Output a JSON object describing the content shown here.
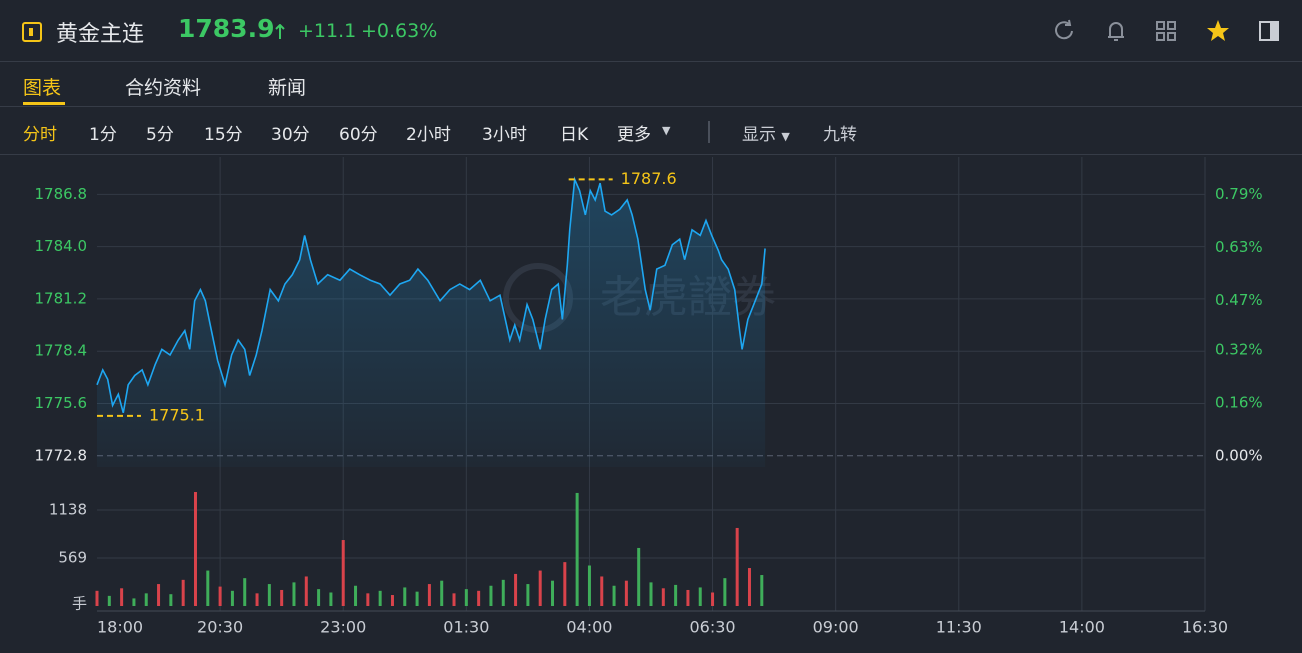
{
  "header": {
    "title": "黄金主连",
    "price": "1783.9",
    "change": "+11.1",
    "change_pct": "+0.63%"
  },
  "tabs": [
    "图表",
    "合约资料",
    "新闻"
  ],
  "active_tab": 0,
  "periods": [
    "分时",
    "1分",
    "5分",
    "15分",
    "30分",
    "60分",
    "2小时",
    "3小时",
    "日K",
    "更多"
  ],
  "active_period": 0,
  "display": "显示",
  "nine_turn": "九转",
  "chart_data": {
    "type": "line",
    "color": "#1ea7f2",
    "watermark": "老虎證券",
    "x": [
      0,
      7,
      13,
      19,
      26,
      32,
      38,
      46,
      55,
      62,
      71,
      79,
      89,
      99,
      107,
      113,
      119,
      126,
      132,
      138,
      147,
      156,
      164,
      172,
      180,
      186,
      194,
      201,
      211,
      221,
      229,
      238,
      247,
      253,
      260,
      269,
      281,
      296,
      308,
      320,
      333,
      345,
      357,
      369,
      381,
      391,
      403,
      418,
      430,
      442,
      454,
      467,
      479,
      491,
      503,
      509,
      515,
      524,
      531,
      540,
      546,
      554,
      562,
      567,
      573,
      576,
      582,
      588,
      595,
      601,
      607,
      613,
      619,
      627,
      637,
      646,
      652,
      659,
      668,
      674,
      682,
      692,
      701,
      710,
      716,
      725,
      735,
      742,
      749,
      757,
      761,
      769,
      777,
      783,
      786,
      793,
      802,
      810,
      814
    ],
    "values": [
      1776.6,
      1777.4,
      1776.9,
      1775.5,
      1776.1,
      1775.1,
      1776.6,
      1777.1,
      1777.4,
      1776.6,
      1777.7,
      1778.5,
      1778.2,
      1779.0,
      1779.5,
      1778.5,
      1781.1,
      1781.7,
      1781.1,
      1779.8,
      1777.9,
      1776.6,
      1778.2,
      1779.0,
      1778.5,
      1777.1,
      1778.2,
      1779.5,
      1781.7,
      1781.1,
      1782.0,
      1782.5,
      1783.3,
      1784.6,
      1783.3,
      1782.0,
      1782.5,
      1782.2,
      1782.8,
      1782.5,
      1782.2,
      1782.0,
      1781.4,
      1782.0,
      1782.2,
      1782.8,
      1782.2,
      1781.1,
      1781.7,
      1782.0,
      1781.7,
      1782.2,
      1781.1,
      1781.4,
      1779.0,
      1779.8,
      1779.0,
      1780.9,
      1780.1,
      1778.5,
      1780.1,
      1781.7,
      1782.0,
      1780.1,
      1783.0,
      1784.9,
      1787.6,
      1787.0,
      1785.7,
      1787.0,
      1786.5,
      1787.4,
      1785.9,
      1785.7,
      1786.0,
      1786.5,
      1785.7,
      1784.4,
      1781.7,
      1780.6,
      1782.8,
      1783.0,
      1784.1,
      1784.4,
      1783.3,
      1784.9,
      1784.6,
      1785.4,
      1784.6,
      1783.8,
      1783.3,
      1782.8,
      1781.7,
      1779.5,
      1778.5,
      1780.1,
      1781.1,
      1782.0,
      1783.9
    ],
    "xlim": [
      0,
      1350
    ],
    "xticks": [
      {
        "value": 0,
        "label": "18:00"
      },
      {
        "value": 150,
        "label": "20:30"
      },
      {
        "value": 300,
        "label": "23:00"
      },
      {
        "value": 450,
        "label": "01:30"
      },
      {
        "value": 600,
        "label": "04:00"
      },
      {
        "value": 750,
        "label": "06:30"
      },
      {
        "value": 900,
        "label": "09:00"
      },
      {
        "value": 1050,
        "label": "11:30"
      },
      {
        "value": 1200,
        "label": "14:00"
      },
      {
        "value": 1350,
        "label": "16:30"
      }
    ],
    "ylim": [
      1772.2,
      1788.8
    ],
    "yticks": [
      1786.8,
      {
        "value": 1784,
        "label": "1784.0"
      },
      1781.2,
      1778.4,
      1775.6,
      1772.8
    ],
    "y2lim": [
      -0.034,
      0.903
    ],
    "y2ticks": [
      {
        "value": 0.79,
        "label": "0.79%"
      },
      {
        "value": 0.63,
        "label": "0.63%"
      },
      {
        "value": 0.47,
        "label": "0.47%"
      },
      {
        "value": 0.32,
        "label": "0.32%"
      },
      {
        "value": 0.16,
        "label": "0.16%"
      },
      {
        "value": 0,
        "label": "0.00%"
      }
    ],
    "high": 1787.6,
    "low": 1775.1,
    "volume": {
      "unit": "手",
      "ylim": [
        0,
        1612
      ],
      "yticks": [
        1138,
        569
      ],
      "x": [
        0,
        15,
        30,
        45,
        60,
        75,
        90,
        105,
        120,
        135,
        150,
        165,
        180,
        195,
        210,
        225,
        240,
        255,
        270,
        285,
        300,
        315,
        330,
        345,
        360,
        375,
        390,
        405,
        420,
        435,
        450,
        465,
        480,
        495,
        510,
        525,
        540,
        555,
        570,
        585,
        600,
        615,
        630,
        645,
        660,
        675,
        690,
        705,
        720,
        735,
        750,
        765,
        780,
        795,
        810
      ],
      "series": [
        {
          "color": "#d9434b",
          "values": [
            180,
            null,
            210,
            null,
            null,
            260,
            null,
            310,
            1351,
            null,
            230,
            null,
            null,
            150,
            null,
            190,
            null,
            350,
            null,
            null,
            782,
            null,
            150,
            null,
            130,
            null,
            null,
            260,
            null,
            150,
            null,
            180,
            null,
            null,
            380,
            null,
            420,
            null,
            520,
            null,
            null,
            350,
            null,
            300,
            null,
            null,
            210,
            null,
            190,
            null,
            160,
            null,
            925,
            450,
            null
          ]
        },
        {
          "color": "#3fae5a",
          "values": [
            null,
            120,
            null,
            90,
            150,
            null,
            140,
            null,
            null,
            420,
            null,
            180,
            330,
            null,
            260,
            null,
            280,
            null,
            200,
            160,
            null,
            240,
            null,
            180,
            null,
            220,
            170,
            null,
            300,
            null,
            200,
            null,
            240,
            310,
            null,
            260,
            null,
            300,
            null,
            1340,
            480,
            null,
            240,
            null,
            688,
            280,
            null,
            250,
            null,
            220,
            null,
            330,
            null,
            null,
            367
          ]
        }
      ]
    }
  }
}
